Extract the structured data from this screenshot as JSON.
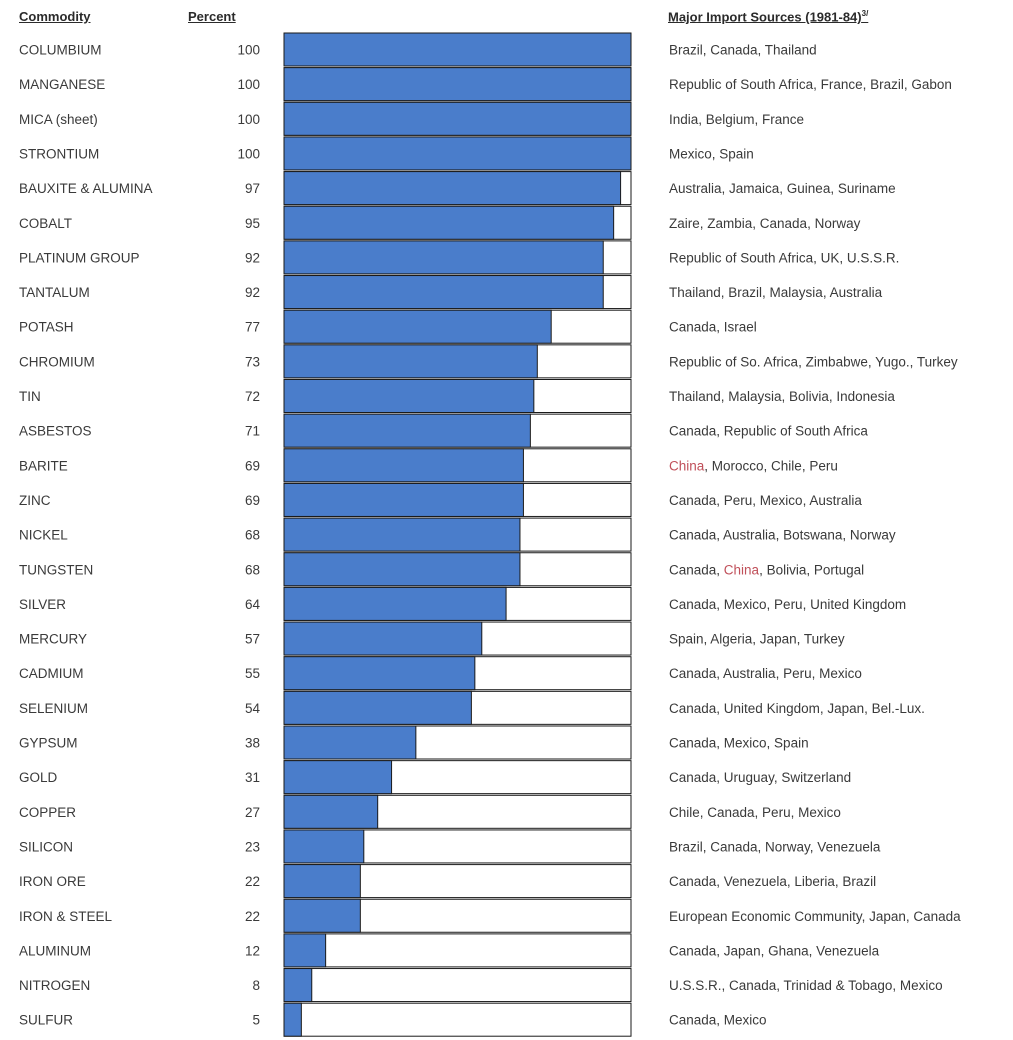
{
  "headers": {
    "commodity": "Commodity",
    "percent": "Percent",
    "sources": "Major Import Sources (1981-84)",
    "sources_note": "3/"
  },
  "colors": {
    "bar_fill": "#4a7dcb",
    "bar_outline": "#1a1a1a",
    "highlight_text": "#c0505a"
  },
  "chart_data": {
    "type": "bar",
    "orientation": "horizontal",
    "xlim": [
      0,
      100
    ],
    "categories": [
      "COLUMBIUM",
      "MANGANESE",
      "MICA (sheet)",
      "STRONTIUM",
      "BAUXITE & ALUMINA",
      "COBALT",
      "PLATINUM GROUP",
      "TANTALUM",
      "POTASH",
      "CHROMIUM",
      "TIN",
      "ASBESTOS",
      "BARITE",
      "ZINC",
      "NICKEL",
      "TUNGSTEN",
      "SILVER",
      "MERCURY",
      "CADMIUM",
      "SELENIUM",
      "GYPSUM",
      "GOLD",
      "COPPER",
      "SILICON",
      "IRON ORE",
      "IRON & STEEL",
      "ALUMINUM",
      "NITROGEN",
      "SULFUR"
    ],
    "values": [
      100,
      100,
      100,
      100,
      97,
      95,
      92,
      92,
      77,
      73,
      72,
      71,
      69,
      69,
      68,
      68,
      64,
      57,
      55,
      54,
      38,
      31,
      27,
      23,
      22,
      22,
      12,
      8,
      5
    ],
    "sources": [
      "Brazil, Canada, Thailand",
      "Republic of South Africa, France, Brazil, Gabon",
      "India, Belgium, France",
      "Mexico, Spain",
      "Australia, Jamaica, Guinea, Suriname",
      "Zaire, Zambia, Canada, Norway",
      "Republic of South Africa, UK, U.S.S.R.",
      "Thailand, Brazil, Malaysia, Australia",
      "Canada, Israel",
      "Republic of So. Africa, Zimbabwe, Yugo., Turkey",
      "Thailand, Malaysia, Bolivia, Indonesia",
      "Canada, Republic of South Africa",
      "China, Morocco, Chile, Peru",
      "Canada, Peru, Mexico, Australia",
      "Canada, Australia, Botswana, Norway",
      "Canada, China, Bolivia, Portugal",
      "Canada, Mexico, Peru, United Kingdom",
      "Spain, Algeria, Japan, Turkey",
      "Canada, Australia, Peru, Mexico",
      "Canada, United Kingdom, Japan, Bel.-Lux.",
      "Canada, Mexico, Spain",
      "Canada, Uruguay, Switzerland",
      "Chile, Canada, Peru, Mexico",
      "Brazil, Canada, Norway, Venezuela",
      "Canada, Venezuela, Liberia, Brazil",
      "European Economic Community, Japan, Canada",
      "Canada, Japan, Ghana, Venezuela",
      "U.S.S.R., Canada, Trinidad & Tobago, Mexico",
      "Canada, Mexico"
    ],
    "highlight_word": "China"
  }
}
